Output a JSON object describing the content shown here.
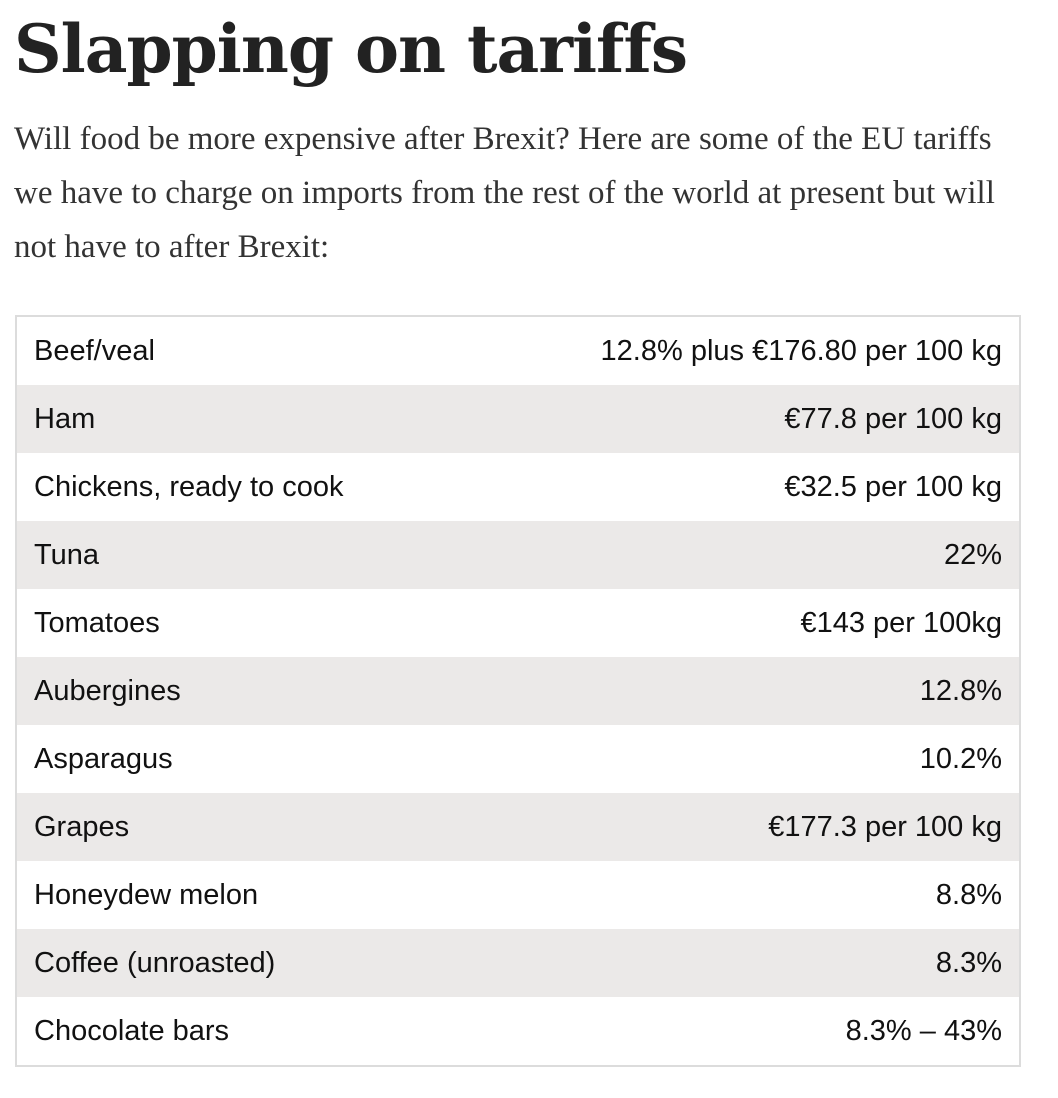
{
  "article": {
    "headline": "Slapping on tariffs",
    "intro": "Will food be more expensive after Brexit? Here are some of the EU tariffs we have to charge on imports from the rest of the world at present but will not have to after Brexit:"
  },
  "tariffs": [
    {
      "product": "Beef/veal",
      "rate": "12.8% plus €176.80 per 100 kg"
    },
    {
      "product": "Ham",
      "rate": "€77.8 per 100 kg"
    },
    {
      "product": "Chickens, ready to cook",
      "rate": "€32.5 per 100 kg"
    },
    {
      "product": "Tuna",
      "rate": "22%"
    },
    {
      "product": "Tomatoes",
      "rate": "€143 per 100kg"
    },
    {
      "product": "Aubergines",
      "rate": "12.8%"
    },
    {
      "product": "Asparagus",
      "rate": "10.2%"
    },
    {
      "product": "Grapes",
      "rate": "€177.3 per 100 kg"
    },
    {
      "product": "Honeydew melon",
      "rate": "8.8%"
    },
    {
      "product": "Coffee (unroasted)",
      "rate": "8.3%"
    },
    {
      "product": "Chocolate bars",
      "rate": "8.3% – 43%"
    }
  ]
}
